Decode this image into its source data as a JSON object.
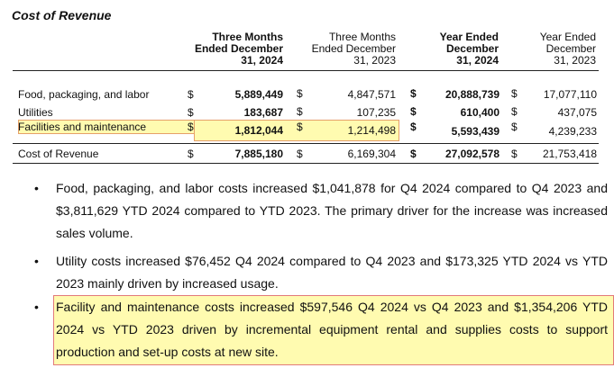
{
  "title": "Cost of Revenue",
  "columns": [
    {
      "lines": [
        "Three Months",
        "Ended December",
        "31, 2024"
      ],
      "bold": true
    },
    {
      "lines": [
        "Three Months",
        "Ended December",
        "31, 2023"
      ],
      "bold": false
    },
    {
      "lines": [
        "Year Ended",
        "December",
        "31, 2024"
      ],
      "bold": true
    },
    {
      "lines": [
        "Year Ended",
        "December",
        "31, 2023"
      ],
      "bold": false
    }
  ],
  "rows": [
    {
      "label": "Food, packaging, and labor",
      "values": [
        "5,889,449",
        "4,847,571",
        "20,888,739",
        "17,077,110"
      ],
      "dollar": true
    },
    {
      "label": "Utilities",
      "values": [
        "183,687",
        "107,235",
        "610,400",
        "437,075"
      ],
      "dollar": true
    },
    {
      "label": "Facilities and maintenance",
      "values": [
        "1,812,044",
        "1,214,498",
        "5,593,439",
        "4,239,233"
      ],
      "dollar": true
    },
    {
      "label": "Cost of Revenue",
      "values": [
        "7,885,180",
        "6,169,304",
        "27,092,578",
        "21,753,418"
      ],
      "dollar": true
    }
  ],
  "dollar_sign": "$",
  "bullet_char": "•",
  "bullets": [
    "Food, packaging, and labor costs increased $1,041,878 for Q4 2024 compared to Q4 2023 and $3,811,629 YTD 2024 compared to YTD 2023. The primary driver for the increase was increased sales volume.",
    "Utility costs increased $76,452 Q4 2024 compared to Q4 2023 and $173,325 YTD 2024 vs YTD 2023 mainly driven by increased usage.",
    "Facility and maintenance costs increased $597,546 Q4 2024 vs Q4 2023 and $1,354,206 YTD 2024 vs YTD 2023 driven by incremental equipment rental and supplies costs to support production and set-up costs at new site."
  ],
  "highlight_color": "#fffbb0"
}
